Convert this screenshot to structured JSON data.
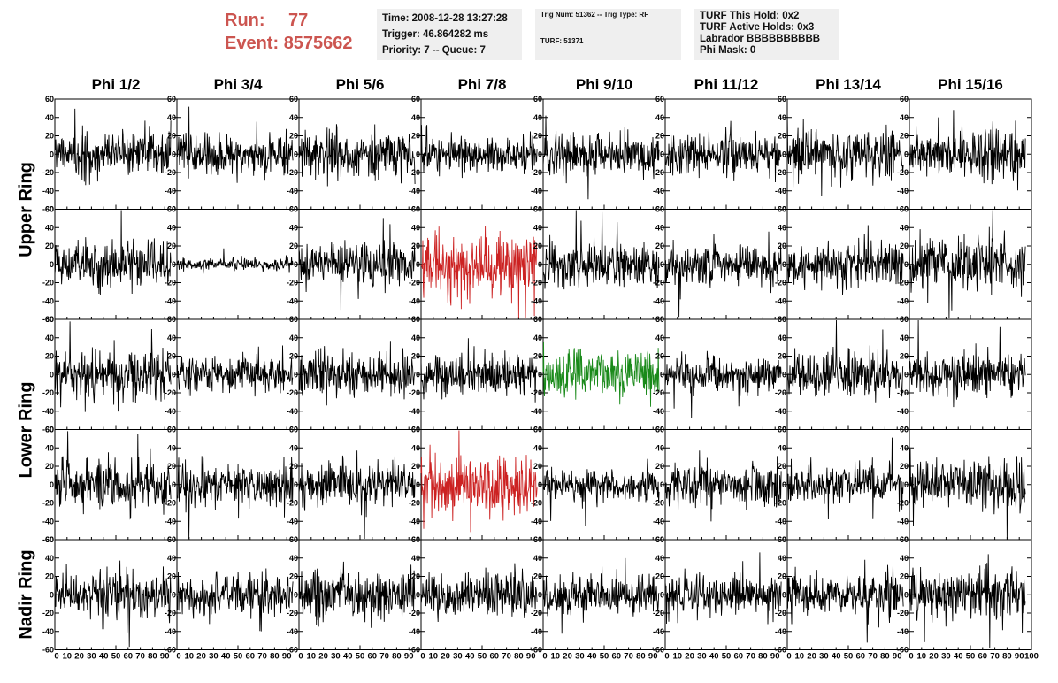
{
  "header": {
    "run_label": "Run:",
    "run_value": "77",
    "event_label": "Event:",
    "event_value": "8575662",
    "info_box_1": [
      "Time: 2008-12-28 13:27:28",
      "Trigger: 46.864282 ms",
      "Priority: 7 -- Queue: 7"
    ],
    "info_box_2": [
      "Trig Num: 51362 -- Trig Type: RF",
      "",
      "TURF: 51371"
    ],
    "info_box_3": [
      "TURF This Hold: 0x2",
      "TURF Active Holds: 0x3",
      "Labrador BBBBBBBBBB",
      "Phi Mask: 0"
    ]
  },
  "chart_data": {
    "type": "line",
    "columns": [
      "Phi 1/2",
      "Phi 3/4",
      "Phi 5/6",
      "Phi 7/8",
      "Phi 9/10",
      "Phi 11/12",
      "Phi 13/14",
      "Phi 15/16"
    ],
    "ring_labels": [
      {
        "label": "Upper Ring",
        "rows": [
          0,
          1
        ]
      },
      {
        "label": "Lower Ring",
        "rows": [
          2,
          3
        ]
      },
      {
        "label": "Nadir Ring",
        "rows": [
          4
        ]
      }
    ],
    "xlim": [
      0,
      100
    ],
    "x_ticks": [
      0,
      10,
      20,
      30,
      40,
      50,
      60,
      70,
      80,
      90
    ],
    "x_ticks_last_panel": [
      0,
      10,
      20,
      30,
      40,
      50,
      60,
      70,
      80,
      90,
      100
    ],
    "ylim": [
      -60,
      60
    ],
    "y_ticks": [
      -60,
      -40,
      -20,
      0,
      20,
      40,
      60
    ],
    "trace_x_range": [
      0,
      95
    ],
    "trace_colors": {
      "normal": "#000000",
      "phi_trigger": "#cc2222",
      "green": "#1a8a1a"
    },
    "panels": [
      [
        {
          "amp": 14,
          "color": "normal"
        },
        {
          "amp": 13,
          "color": "normal"
        },
        {
          "amp": 14,
          "color": "normal"
        },
        {
          "amp": 12,
          "color": "normal"
        },
        {
          "amp": 13,
          "color": "normal"
        },
        {
          "amp": 12,
          "color": "normal"
        },
        {
          "amp": 15,
          "color": "normal"
        },
        {
          "amp": 16,
          "color": "normal"
        }
      ],
      [
        {
          "amp": 15,
          "color": "normal"
        },
        {
          "amp": 4,
          "color": "normal"
        },
        {
          "amp": 13,
          "color": "normal"
        },
        {
          "amp": 20,
          "color": "phi_trigger"
        },
        {
          "amp": 14,
          "color": "normal"
        },
        {
          "amp": 13,
          "color": "normal"
        },
        {
          "amp": 13,
          "color": "normal"
        },
        {
          "amp": 17,
          "color": "normal"
        }
      ],
      [
        {
          "amp": 15,
          "color": "normal"
        },
        {
          "amp": 12,
          "color": "normal"
        },
        {
          "amp": 14,
          "color": "normal"
        },
        {
          "amp": 13,
          "color": "normal"
        },
        {
          "amp": 16,
          "color": "green"
        },
        {
          "amp": 12,
          "color": "normal"
        },
        {
          "amp": 14,
          "color": "normal"
        },
        {
          "amp": 14,
          "color": "normal"
        }
      ],
      [
        {
          "amp": 15,
          "color": "normal"
        },
        {
          "amp": 14,
          "color": "normal"
        },
        {
          "amp": 14,
          "color": "normal"
        },
        {
          "amp": 18,
          "color": "phi_trigger"
        },
        {
          "amp": 10,
          "color": "normal"
        },
        {
          "amp": 13,
          "color": "normal"
        },
        {
          "amp": 13,
          "color": "normal"
        },
        {
          "amp": 16,
          "color": "normal"
        }
      ],
      [
        {
          "amp": 15,
          "color": "normal"
        },
        {
          "amp": 12,
          "color": "normal"
        },
        {
          "amp": 14,
          "color": "normal"
        },
        {
          "amp": 14,
          "color": "normal"
        },
        {
          "amp": 12,
          "color": "normal"
        },
        {
          "amp": 12,
          "color": "normal"
        },
        {
          "amp": 13,
          "color": "normal"
        },
        {
          "amp": 15,
          "color": "normal"
        }
      ]
    ]
  }
}
